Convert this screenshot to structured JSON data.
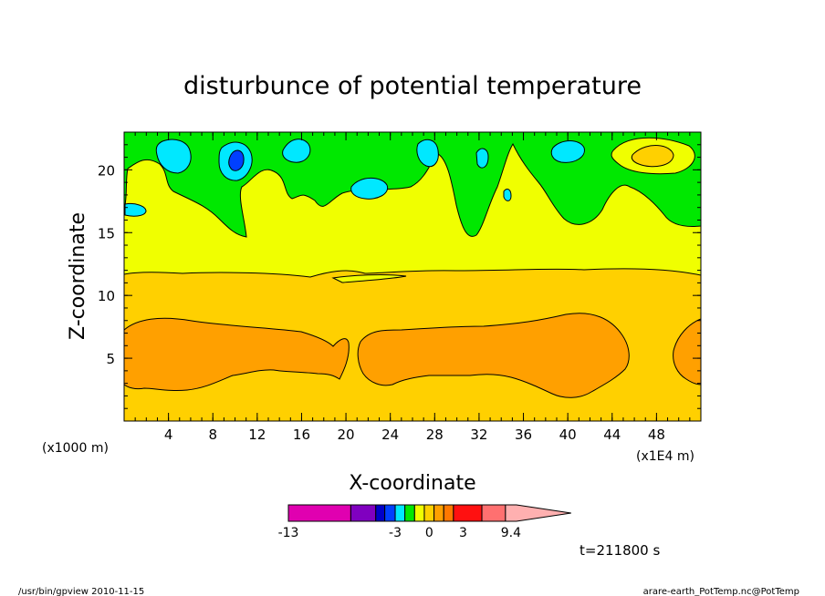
{
  "chart_data": {
    "type": "heatmap",
    "title": "disturbunce of potential temperature",
    "xlabel": "X-coordinate",
    "ylabel": "Z-coordinate",
    "xunit_left": "(x1000 m)",
    "xunit_right": "(x1E4 m)",
    "xlim": [
      0,
      52
    ],
    "ylim": [
      0,
      23
    ],
    "x_ticks": [
      4,
      8,
      12,
      16,
      20,
      24,
      28,
      32,
      36,
      40,
      44,
      48
    ],
    "y_ticks": [
      5,
      10,
      15,
      20
    ],
    "time_label": "t=211800 s",
    "colorbar": {
      "labels": [
        {
          "value": -13,
          "text": "-13"
        },
        {
          "value": -3,
          "text": "-3"
        },
        {
          "value": 0,
          "text": "0"
        },
        {
          "value": 3,
          "text": "3"
        },
        {
          "value": 9.4,
          "text": "9.4"
        }
      ],
      "bands": [
        {
          "from": 0,
          "to": 9,
          "color": "#e000b0"
        },
        {
          "from": 9,
          "to": 12.6,
          "color": "#8000c0"
        },
        {
          "from": 12.6,
          "to": 13.9,
          "color": "#0000c8"
        },
        {
          "from": 13.9,
          "to": 15.4,
          "color": "#0040ff"
        },
        {
          "from": 15.4,
          "to": 16.8,
          "color": "#00e8ff"
        },
        {
          "from": 16.8,
          "to": 18.2,
          "color": "#00e800"
        },
        {
          "from": 18.2,
          "to": 19.6,
          "color": "#f0ff00"
        },
        {
          "from": 19.6,
          "to": 21.0,
          "color": "#ffd000"
        },
        {
          "from": 21.0,
          "to": 22.4,
          "color": "#ffa000"
        },
        {
          "from": 22.4,
          "to": 23.8,
          "color": "#ff7800"
        },
        {
          "from": 23.8,
          "to": 27.9,
          "color": "#ff1010"
        },
        {
          "from": 27.9,
          "to": 31.3,
          "color": "#ff7070"
        },
        {
          "from": 31.3,
          "to": 35.5,
          "color": "#ffb0b0"
        }
      ]
    },
    "level_colors": {
      "pos_gt4": "#ffa000",
      "pos_2_4": "#ffd000",
      "pos_0_2": "#f0ff00",
      "neg_0_1": "#00e800",
      "neg_1_2": "#00e8ff",
      "neg_lt2": "#0040ff"
    }
  },
  "footer": {
    "left": "/usr/bin/gpview   2010-11-15",
    "right": "arare-earth_PotTemp.nc@PotTemp"
  }
}
